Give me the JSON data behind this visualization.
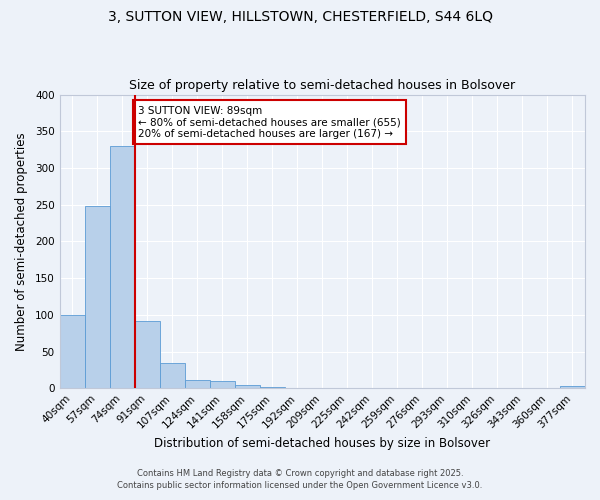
{
  "title1": "3, SUTTON VIEW, HILLSTOWN, CHESTERFIELD, S44 6LQ",
  "title2": "Size of property relative to semi-detached houses in Bolsover",
  "xlabel": "Distribution of semi-detached houses by size in Bolsover",
  "ylabel": "Number of semi-detached properties",
  "categories": [
    "40sqm",
    "57sqm",
    "74sqm",
    "91sqm",
    "107sqm",
    "124sqm",
    "141sqm",
    "158sqm",
    "175sqm",
    "192sqm",
    "209sqm",
    "225sqm",
    "242sqm",
    "259sqm",
    "276sqm",
    "293sqm",
    "310sqm",
    "326sqm",
    "343sqm",
    "360sqm",
    "377sqm"
  ],
  "values": [
    100,
    248,
    330,
    92,
    34,
    11,
    10,
    4,
    2,
    0,
    0,
    0,
    0,
    0,
    0,
    0,
    0,
    0,
    0,
    0,
    3
  ],
  "bar_color": "#b8d0ea",
  "bar_edge_color": "#5b9bd5",
  "vline_color": "#cc0000",
  "annotation_text": "3 SUTTON VIEW: 89sqm\n← 80% of semi-detached houses are smaller (655)\n20% of semi-detached houses are larger (167) →",
  "annotation_box_color": "#ffffff",
  "annotation_box_edge": "#cc0000",
  "footer1": "Contains HM Land Registry data © Crown copyright and database right 2025.",
  "footer2": "Contains public sector information licensed under the Open Government Licence v3.0.",
  "background_color": "#edf2f9",
  "ylim": [
    0,
    400
  ],
  "yticks": [
    0,
    50,
    100,
    150,
    200,
    250,
    300,
    350,
    400
  ],
  "title1_fontsize": 10,
  "title2_fontsize": 9,
  "xlabel_fontsize": 8.5,
  "ylabel_fontsize": 8.5,
  "annotation_fontsize": 7.5,
  "tick_fontsize": 7.5,
  "footer_fontsize": 6.0
}
